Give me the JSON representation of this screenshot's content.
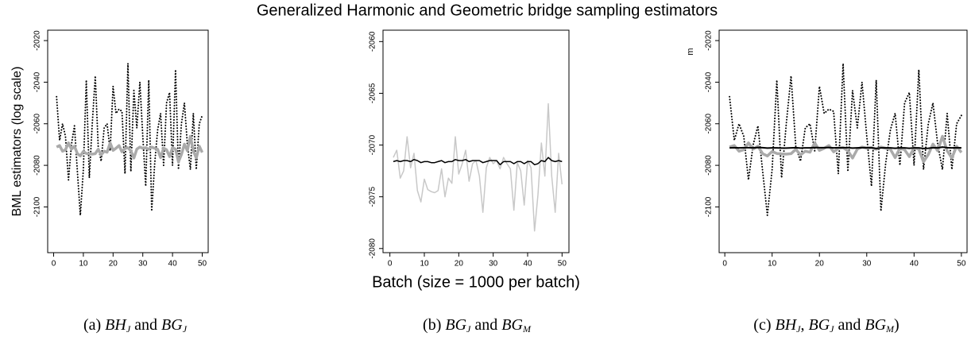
{
  "title": "Generalized Harmonic and Geometric bridge sampling estimators",
  "chart_data": [
    {
      "type": "line",
      "ylabel": "BML estimators (log scale)",
      "caption": [
        {
          "text": "(a) ",
          "style": "plain"
        },
        {
          "text": "BH",
          "style": "italic"
        },
        {
          "text": "J",
          "style": "sub"
        },
        {
          "text": " and ",
          "style": "plain"
        },
        {
          "text": "BG",
          "style": "italic"
        },
        {
          "text": "J",
          "style": "sub"
        }
      ],
      "x": [
        1,
        2,
        3,
        4,
        5,
        6,
        7,
        8,
        9,
        10,
        11,
        12,
        13,
        14,
        15,
        16,
        17,
        18,
        19,
        20,
        21,
        22,
        23,
        24,
        25,
        26,
        27,
        28,
        29,
        30,
        31,
        32,
        33,
        34,
        35,
        36,
        37,
        38,
        39,
        40,
        41,
        42,
        43,
        44,
        45,
        46,
        47,
        48,
        49,
        50
      ],
      "xlim": [
        -2,
        52
      ],
      "xticks": [
        0,
        10,
        20,
        30,
        40,
        50
      ],
      "ylim": [
        -2122,
        -2015
      ],
      "yticks": [
        -2020,
        -2040,
        -2060,
        -2080,
        -2100
      ],
      "series": [
        {
          "color": "#000000",
          "line_style": "dotted",
          "line_width": 2,
          "values": [
            -2047,
            -2068,
            -2060,
            -2066,
            -2087,
            -2070,
            -2061,
            -2083,
            -2104,
            -2082,
            -2039,
            -2086,
            -2060,
            -2037,
            -2071,
            -2078,
            -2062,
            -2060,
            -2073,
            -2042,
            -2055,
            -2053,
            -2054,
            -2084,
            -2031,
            -2083,
            -2044,
            -2062,
            -2040,
            -2066,
            -2090,
            -2039,
            -2102,
            -2079,
            -2063,
            -2055,
            -2080,
            -2050,
            -2045,
            -2080,
            -2034,
            -2082,
            -2060,
            -2050,
            -2070,
            -2082,
            -2055,
            -2082,
            -2060,
            -2056
          ]
        },
        {
          "color": "#aaaaaa",
          "line_style": "solid",
          "line_width": 3.5,
          "values": [
            -2071.2,
            -2070.5,
            -2073.2,
            -2072.5,
            -2069.2,
            -2072.2,
            -2070.8,
            -2074.4,
            -2075.5,
            -2073.3,
            -2074.3,
            -2074.5,
            -2074.6,
            -2074.4,
            -2072.3,
            -2075.0,
            -2073.2,
            -2073.7,
            -2069.2,
            -2072.8,
            -2071.8,
            -2070.5,
            -2073.5,
            -2071.8,
            -2071.5,
            -2073.0,
            -2076.5,
            -2072.2,
            -2071.2,
            -2071.8,
            -2071.5,
            -2072.3,
            -2071.2,
            -2071.8,
            -2072.3,
            -2076.3,
            -2071.7,
            -2072.5,
            -2075.8,
            -2071.5,
            -2072.2,
            -2078.3,
            -2074.8,
            -2069.8,
            -2073.0,
            -2066.0,
            -2073.0,
            -2076.5,
            -2070.8,
            -2073.8
          ]
        }
      ]
    },
    {
      "type": "line",
      "xlabel": "Batch (size = 1000 per batch)",
      "caption": [
        {
          "text": "(b) ",
          "style": "plain"
        },
        {
          "text": "BG",
          "style": "italic"
        },
        {
          "text": "J",
          "style": "sub"
        },
        {
          "text": " and ",
          "style": "plain"
        },
        {
          "text": "BG",
          "style": "italic"
        },
        {
          "text": "M",
          "style": "sub"
        }
      ],
      "x": [
        1,
        2,
        3,
        4,
        5,
        6,
        7,
        8,
        9,
        10,
        11,
        12,
        13,
        14,
        15,
        16,
        17,
        18,
        19,
        20,
        21,
        22,
        23,
        24,
        25,
        26,
        27,
        28,
        29,
        30,
        31,
        32,
        33,
        34,
        35,
        36,
        37,
        38,
        39,
        40,
        41,
        42,
        43,
        44,
        45,
        46,
        47,
        48,
        49,
        50
      ],
      "xlim": [
        -2,
        52
      ],
      "xticks": [
        0,
        10,
        20,
        30,
        40,
        50
      ],
      "ylim": [
        -2080.4,
        -2058.9
      ],
      "yticks": [
        -2060,
        -2065,
        -2070,
        -2075,
        -2080
      ],
      "series": [
        {
          "color": "#c8c8c8",
          "line_style": "solid",
          "line_width": 1.5,
          "values": [
            -2071.2,
            -2070.5,
            -2073.2,
            -2072.5,
            -2069.2,
            -2072.2,
            -2070.8,
            -2074.4,
            -2075.5,
            -2073.3,
            -2074.3,
            -2074.5,
            -2074.6,
            -2074.4,
            -2072.3,
            -2075.0,
            -2073.2,
            -2073.7,
            -2069.2,
            -2072.8,
            -2071.8,
            -2070.5,
            -2073.5,
            -2071.8,
            -2071.5,
            -2073.0,
            -2076.5,
            -2072.2,
            -2071.2,
            -2071.8,
            -2071.5,
            -2072.3,
            -2071.2,
            -2071.8,
            -2072.3,
            -2076.3,
            -2071.7,
            -2072.5,
            -2075.8,
            -2071.5,
            -2072.2,
            -2078.3,
            -2074.8,
            -2069.8,
            -2073.0,
            -2066.0,
            -2073.0,
            -2076.5,
            -2070.8,
            -2073.8
          ]
        },
        {
          "color": "#000000",
          "line_style": "solid",
          "line_width": 1.5,
          "values": [
            -2071.6,
            -2071.5,
            -2071.6,
            -2071.5,
            -2071.5,
            -2071.6,
            -2071.4,
            -2071.5,
            -2071.7,
            -2071.6,
            -2071.6,
            -2071.7,
            -2071.7,
            -2071.6,
            -2071.5,
            -2071.7,
            -2071.6,
            -2071.6,
            -2071.4,
            -2071.5,
            -2071.5,
            -2071.4,
            -2071.6,
            -2071.5,
            -2071.5,
            -2071.5,
            -2071.7,
            -2071.6,
            -2071.5,
            -2071.5,
            -2071.5,
            -2071.9,
            -2071.6,
            -2071.6,
            -2071.6,
            -2071.8,
            -2071.6,
            -2071.6,
            -2071.8,
            -2071.6,
            -2071.6,
            -2071.9,
            -2071.8,
            -2071.5,
            -2071.6,
            -2071.2,
            -2071.5,
            -2071.6,
            -2071.5,
            -2071.6
          ]
        }
      ]
    },
    {
      "type": "line",
      "ylabel": "m",
      "caption": [
        {
          "text": "(c) ",
          "style": "plain"
        },
        {
          "text": "BH",
          "style": "italic"
        },
        {
          "text": "J",
          "style": "sub"
        },
        {
          "text": ", ",
          "style": "plain"
        },
        {
          "text": "BG",
          "style": "italic"
        },
        {
          "text": "J",
          "style": "sub"
        },
        {
          "text": " and ",
          "style": "plain"
        },
        {
          "text": "BG",
          "style": "italic"
        },
        {
          "text": "M",
          "style": "sub"
        },
        {
          "text": ")",
          "style": "plain"
        }
      ],
      "x": [
        1,
        2,
        3,
        4,
        5,
        6,
        7,
        8,
        9,
        10,
        11,
        12,
        13,
        14,
        15,
        16,
        17,
        18,
        19,
        20,
        21,
        22,
        23,
        24,
        25,
        26,
        27,
        28,
        29,
        30,
        31,
        32,
        33,
        34,
        35,
        36,
        37,
        38,
        39,
        40,
        41,
        42,
        43,
        44,
        45,
        46,
        47,
        48,
        49,
        50
      ],
      "xlim": [
        -1.2,
        51.2
      ],
      "xticks": [
        0,
        10,
        20,
        30,
        40,
        50
      ],
      "ylim": [
        -2122,
        -2015
      ],
      "yticks": [
        -2020,
        -2040,
        -2060,
        -2080,
        -2100
      ],
      "series": [
        {
          "color": "#000000",
          "line_style": "dotted",
          "line_width": 2,
          "values": [
            -2047,
            -2068,
            -2060,
            -2066,
            -2087,
            -2070,
            -2061,
            -2083,
            -2104,
            -2082,
            -2039,
            -2086,
            -2060,
            -2037,
            -2071,
            -2078,
            -2062,
            -2060,
            -2073,
            -2042,
            -2055,
            -2053,
            -2054,
            -2084,
            -2031,
            -2083,
            -2044,
            -2062,
            -2040,
            -2066,
            -2090,
            -2039,
            -2102,
            -2079,
            -2063,
            -2055,
            -2080,
            -2050,
            -2045,
            -2080,
            -2034,
            -2082,
            -2060,
            -2050,
            -2070,
            -2082,
            -2055,
            -2082,
            -2060,
            -2056
          ]
        },
        {
          "color": "#aaaaaa",
          "line_style": "solid",
          "line_width": 3.5,
          "values": [
            -2071.2,
            -2070.5,
            -2073.2,
            -2072.5,
            -2069.2,
            -2072.2,
            -2070.8,
            -2074.4,
            -2075.5,
            -2073.3,
            -2074.3,
            -2074.5,
            -2074.6,
            -2074.4,
            -2072.3,
            -2075.0,
            -2073.2,
            -2073.7,
            -2069.2,
            -2072.8,
            -2071.8,
            -2070.5,
            -2073.5,
            -2071.8,
            -2071.5,
            -2073.0,
            -2076.5,
            -2072.2,
            -2071.2,
            -2071.8,
            -2071.5,
            -2072.3,
            -2071.2,
            -2071.8,
            -2072.3,
            -2076.3,
            -2071.7,
            -2072.5,
            -2075.8,
            -2071.5,
            -2072.2,
            -2078.3,
            -2074.8,
            -2069.8,
            -2073.0,
            -2066.0,
            -2073.0,
            -2076.5,
            -2070.8,
            -2073.8
          ]
        },
        {
          "color": "#000000",
          "line_style": "solid",
          "line_width": 2,
          "values": [
            -2071.6,
            -2071.5,
            -2071.6,
            -2071.5,
            -2071.5,
            -2071.6,
            -2071.4,
            -2071.5,
            -2071.7,
            -2071.6,
            -2071.6,
            -2071.7,
            -2071.7,
            -2071.6,
            -2071.5,
            -2071.7,
            -2071.6,
            -2071.6,
            -2071.4,
            -2071.5,
            -2071.5,
            -2071.4,
            -2071.6,
            -2071.5,
            -2071.5,
            -2071.5,
            -2071.7,
            -2071.6,
            -2071.5,
            -2071.5,
            -2071.5,
            -2071.9,
            -2071.6,
            -2071.6,
            -2071.6,
            -2071.8,
            -2071.6,
            -2071.6,
            -2071.8,
            -2071.6,
            -2071.6,
            -2071.9,
            -2071.8,
            -2071.5,
            -2071.6,
            -2071.2,
            -2071.5,
            -2071.6,
            -2071.5,
            -2071.6
          ]
        }
      ]
    }
  ]
}
